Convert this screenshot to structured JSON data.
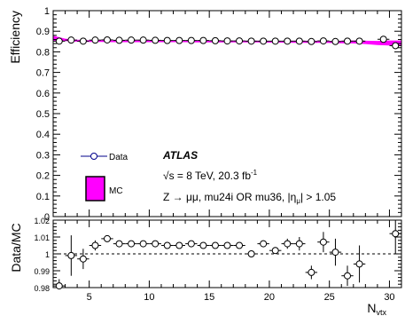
{
  "chart_data": [
    {
      "type": "scatter",
      "ylabel": "Efficiency",
      "ylim": [
        0,
        1
      ],
      "xlim": [
        2,
        31
      ],
      "yticks": [
        0,
        0.1,
        0.2,
        0.3,
        0.4,
        0.5,
        0.6,
        0.7,
        0.8,
        0.9,
        1
      ],
      "ytick_labels": [
        "0",
        "0.1",
        "0.2",
        "0.3",
        "0.4",
        "0.5",
        "0.6",
        "0.7",
        "0.8",
        "0.9",
        "1"
      ],
      "series": [
        {
          "name": "Data",
          "color": "#00008b",
          "x": [
            2.5,
            3.5,
            4.5,
            5.5,
            6.5,
            7.5,
            8.5,
            9.5,
            10.5,
            11.5,
            12.5,
            13.5,
            14.5,
            15.5,
            16.5,
            17.5,
            18.5,
            19.5,
            20.5,
            21.5,
            22.5,
            23.5,
            24.5,
            25.5,
            26.5,
            27.5,
            29.5,
            30.5
          ],
          "y": [
            0.852,
            0.857,
            0.852,
            0.857,
            0.858,
            0.856,
            0.857,
            0.857,
            0.856,
            0.855,
            0.855,
            0.855,
            0.855,
            0.854,
            0.853,
            0.853,
            0.852,
            0.852,
            0.852,
            0.852,
            0.852,
            0.85,
            0.853,
            0.85,
            0.852,
            0.852,
            0.861,
            0.83
          ]
        },
        {
          "name": "MC",
          "color": "#ff00ff",
          "type": "band",
          "x": [
            2,
            3,
            4,
            5,
            6,
            7,
            8,
            9,
            10,
            11,
            12,
            13,
            14,
            15,
            16,
            17,
            18,
            19,
            20,
            21,
            22,
            23,
            24,
            25,
            26,
            27,
            28,
            29,
            30,
            31
          ],
          "y": [
            0.866,
            0.858,
            0.854,
            0.852,
            0.852,
            0.851,
            0.851,
            0.851,
            0.851,
            0.851,
            0.851,
            0.851,
            0.85,
            0.85,
            0.85,
            0.85,
            0.85,
            0.85,
            0.849,
            0.849,
            0.849,
            0.849,
            0.849,
            0.848,
            0.848,
            0.848,
            0.846,
            0.843,
            0.843,
            0.843
          ],
          "err": [
            0.012,
            0.006,
            0.005,
            0.004,
            0.004,
            0.004,
            0.004,
            0.004,
            0.004,
            0.004,
            0.004,
            0.004,
            0.004,
            0.004,
            0.004,
            0.004,
            0.004,
            0.004,
            0.004,
            0.004,
            0.005,
            0.005,
            0.005,
            0.005,
            0.006,
            0.007,
            0.008,
            0.01,
            0.012,
            0.012
          ]
        }
      ],
      "legend": [
        "Data",
        "MC"
      ],
      "legend_position": "bottom-left",
      "annotations": [
        "ATLAS",
        "√s = 8 TeV, 20.3 fb",
        "-1",
        "Z → μμ, mu24i OR mu36, |η",
        "μ",
        "| > 1.05"
      ]
    },
    {
      "type": "scatter",
      "xlabel": "N",
      "xlabel_sub": "vtx",
      "ylabel": "Data/MC",
      "xlim": [
        2,
        31
      ],
      "ylim": [
        0.98,
        1.02
      ],
      "xticks": [
        5,
        10,
        15,
        20,
        25,
        30
      ],
      "xtick_labels": [
        "5",
        "10",
        "15",
        "20",
        "25",
        "30"
      ],
      "yticks": [
        0.98,
        0.99,
        1,
        1.01,
        1.02
      ],
      "ytick_labels": [
        "0.98",
        "0.99",
        "1",
        "1.01",
        "1.02"
      ],
      "reference_line": 1,
      "x": [
        2.5,
        3.5,
        4.5,
        5.5,
        6.5,
        7.5,
        8.5,
        9.5,
        10.5,
        11.5,
        12.5,
        13.5,
        14.5,
        15.5,
        16.5,
        17.5,
        18.5,
        19.5,
        20.5,
        21.5,
        22.5,
        23.5,
        24.5,
        25.5,
        26.5,
        27.5,
        30.5
      ],
      "y": [
        0.981,
        0.999,
        0.997,
        1.005,
        1.009,
        1.006,
        1.006,
        1.006,
        1.006,
        1.005,
        1.005,
        1.006,
        1.005,
        1.005,
        1.005,
        1.005,
        1.0,
        1.006,
        1.002,
        1.006,
        1.006,
        0.989,
        1.007,
        1.001,
        0.987,
        0.994,
        1.012
      ],
      "yerr": [
        0.004,
        0.012,
        0.006,
        0.003,
        0.002,
        0.001,
        0.001,
        0.001,
        0.001,
        0.001,
        0.001,
        0.001,
        0.001,
        0.001,
        0.001,
        0.001,
        0.001,
        0.002,
        0.002,
        0.003,
        0.004,
        0.004,
        0.006,
        0.008,
        0.006,
        0.011,
        0.012
      ]
    }
  ]
}
